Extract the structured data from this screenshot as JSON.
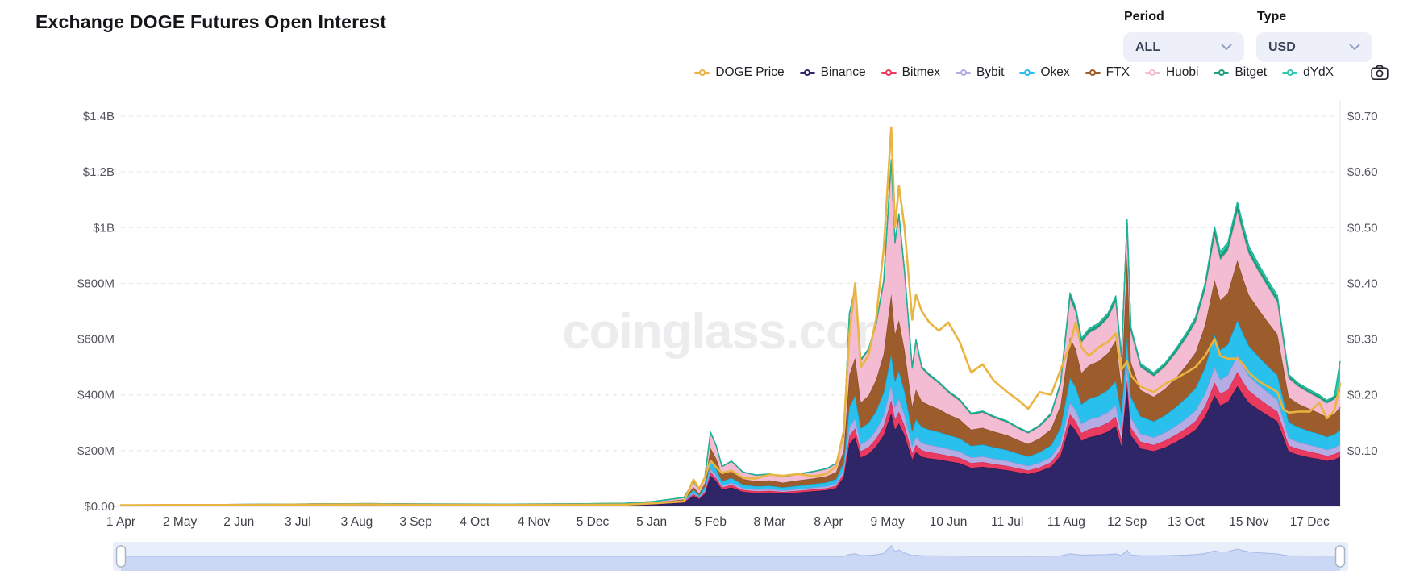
{
  "header": {
    "title": "Exchange DOGE Futures Open Interest",
    "period_label": "Period",
    "period_value": "ALL",
    "type_label": "Type",
    "type_value": "USD"
  },
  "watermark": "coinglass.com",
  "icons": {
    "dropdown": "chevron-down",
    "screenshot": "camera"
  },
  "legend": [
    {
      "label": "DOGE Price",
      "color": "#eab441"
    },
    {
      "label": "Binance",
      "color": "#2e2667"
    },
    {
      "label": "Bitmex",
      "color": "#ea3a60"
    },
    {
      "label": "Bybit",
      "color": "#b6ace4"
    },
    {
      "label": "Okex",
      "color": "#29c0ee"
    },
    {
      "label": "FTX",
      "color": "#9c5c2b"
    },
    {
      "label": "Huobi",
      "color": "#f3bcd3"
    },
    {
      "label": "Bitget",
      "color": "#1fa07d"
    },
    {
      "label": "dYdX",
      "color": "#2dc8ae"
    }
  ],
  "colors": {
    "grid": "#e5e5ea",
    "baseline": "#d8d8de",
    "axis_text": "#55565e",
    "x_tick_text": "#3e3f46",
    "watermark": "#ececef",
    "price_line": "#eab441",
    "nav_track": "#e9eefb",
    "nav_fill": "#cbd8f5",
    "nav_line": "#a3b9ea",
    "nav_handle_fill": "#ffffff",
    "nav_handle_border": "#a9b4c9"
  },
  "chart_data": {
    "type": "area",
    "stacking": "normal",
    "title": "Exchange DOGE Futures Open Interest",
    "grid": "dashed horizontal",
    "legend_position": "top",
    "left_axis": {
      "unit": "USD open interest",
      "tick_labels": [
        "$0.00",
        "$200M",
        "$400M",
        "$600M",
        "$800M",
        "$1B",
        "$1.2B",
        "$1.4B"
      ],
      "values_musd": [
        0,
        200,
        400,
        600,
        800,
        1000,
        1200,
        1400
      ],
      "max_musd": 1400
    },
    "right_axis": {
      "unit": "DOGE price USD",
      "tick_labels": [
        "$0.10",
        "$0.20",
        "$0.30",
        "$0.40",
        "$0.50",
        "$0.60",
        "$0.70"
      ],
      "values": [
        0.1,
        0.2,
        0.3,
        0.4,
        0.5,
        0.6,
        0.7
      ],
      "max": 0.7
    },
    "x_domain": [
      0,
      641
    ],
    "x_ticks": [
      {
        "day": 0,
        "label": "1 Apr"
      },
      {
        "day": 31,
        "label": "2 May"
      },
      {
        "day": 62,
        "label": "2 Jun"
      },
      {
        "day": 93,
        "label": "3 Jul"
      },
      {
        "day": 124,
        "label": "3 Aug"
      },
      {
        "day": 155,
        "label": "3 Sep"
      },
      {
        "day": 186,
        "label": "4 Oct"
      },
      {
        "day": 217,
        "label": "4 Nov"
      },
      {
        "day": 248,
        "label": "5 Dec"
      },
      {
        "day": 279,
        "label": "5 Jan"
      },
      {
        "day": 310,
        "label": "5 Feb"
      },
      {
        "day": 341,
        "label": "8 Mar"
      },
      {
        "day": 372,
        "label": "8 Apr"
      },
      {
        "day": 403,
        "label": "9 May"
      },
      {
        "day": 435,
        "label": "10 Jun"
      },
      {
        "day": 466,
        "label": "11 Jul"
      },
      {
        "day": 497,
        "label": "11 Aug"
      },
      {
        "day": 529,
        "label": "12 Sep"
      },
      {
        "day": 560,
        "label": "13 Oct"
      },
      {
        "day": 593,
        "label": "15 Nov"
      },
      {
        "day": 625,
        "label": "17 Dec"
      }
    ],
    "series_meta": [
      {
        "name": "Binance",
        "fill": "#2e2667",
        "line": "#251e56"
      },
      {
        "name": "Bitmex",
        "fill": "#ea3a60",
        "line": "#d92a50"
      },
      {
        "name": "Bybit",
        "fill": "#b6ace4",
        "line": "#a294da"
      },
      {
        "name": "Okex",
        "fill": "#29c0ee",
        "line": "#12a9da"
      },
      {
        "name": "FTX",
        "fill": "#9c5c2b",
        "line": "#8a4e22"
      },
      {
        "name": "Huobi",
        "fill": "#f3bcd3",
        "line": "#ec9fc2"
      },
      {
        "name": "Bitget",
        "fill": "#1fa07d",
        "line": "#178a6a"
      },
      {
        "name": "dYdX",
        "fill": "#2dc8ae",
        "line": "#1db497"
      }
    ],
    "price_series_name": "DOGE Price",
    "columns": [
      "day",
      "Binance_M",
      "Bitmex_M",
      "Bybit_M",
      "Okex_M",
      "FTX_M",
      "Huobi_M",
      "Bitget_M",
      "dYdX_M",
      "DOGE_price_usd"
    ],
    "rows": [
      [
        0,
        2,
        0.3,
        0.2,
        0.6,
        0.3,
        1.2,
        0,
        0,
        0.0022
      ],
      [
        30,
        2.5,
        0.4,
        0.2,
        0.8,
        0.4,
        1.5,
        0,
        0,
        0.0025
      ],
      [
        65,
        3,
        0.4,
        0.3,
        0.9,
        0.4,
        1.8,
        0,
        0,
        0.0024
      ],
      [
        100,
        4,
        0.5,
        0.3,
        1.1,
        0.5,
        2.2,
        0,
        0,
        0.0032
      ],
      [
        130,
        4.5,
        0.6,
        0.4,
        1.2,
        0.6,
        2.4,
        0,
        0,
        0.0034
      ],
      [
        165,
        4,
        0.5,
        0.3,
        1,
        0.5,
        2,
        0,
        0,
        0.0028
      ],
      [
        200,
        3.8,
        0.5,
        0.3,
        1,
        0.5,
        2,
        0,
        0,
        0.0026
      ],
      [
        235,
        4.2,
        0.5,
        0.4,
        1.1,
        0.6,
        2.2,
        0,
        0,
        0.0028
      ],
      [
        265,
        5,
        0.6,
        0.5,
        1.4,
        0.8,
        2.8,
        0,
        0,
        0.0032
      ],
      [
        280,
        8,
        1,
        0.8,
        2.2,
        1.5,
        4,
        0,
        0,
        0.0055
      ],
      [
        296,
        14,
        2,
        1.5,
        4,
        3,
        7,
        0.2,
        0,
        0.009
      ],
      [
        301,
        38,
        6,
        5,
        11,
        9,
        19,
        0.4,
        0.2,
        0.048
      ],
      [
        304,
        26,
        4,
        3,
        7,
        6,
        13,
        0.4,
        0.2,
        0.031
      ],
      [
        307,
        45,
        7,
        6,
        13,
        12,
        24,
        0.5,
        0.3,
        0.052
      ],
      [
        310,
        110,
        13,
        12,
        26,
        48,
        56,
        1,
        0.5,
        0.082
      ],
      [
        313,
        90,
        11,
        10,
        22,
        38,
        45,
        1,
        0.5,
        0.07
      ],
      [
        316,
        60,
        8,
        7,
        15,
        24,
        28,
        1,
        0.5,
        0.06
      ],
      [
        321,
        68,
        9,
        8,
        17,
        27,
        32,
        1,
        0.5,
        0.064
      ],
      [
        327,
        52,
        7,
        6,
        13,
        20,
        24,
        1,
        0.5,
        0.051
      ],
      [
        334,
        48,
        6,
        6,
        12,
        18,
        21,
        1,
        0.5,
        0.05
      ],
      [
        341,
        50,
        6,
        6,
        12,
        19,
        22,
        1,
        0.5,
        0.057
      ],
      [
        348,
        46,
        6,
        5,
        11,
        17,
        20,
        1,
        0.5,
        0.055
      ],
      [
        356,
        50,
        6,
        6,
        12,
        19,
        22,
        1,
        0.5,
        0.058
      ],
      [
        364,
        54,
        7,
        6,
        13,
        20,
        24,
        1,
        0.5,
        0.054
      ],
      [
        371,
        58,
        7,
        7,
        14,
        22,
        26,
        1,
        0.6,
        0.058
      ],
      [
        376,
        66,
        8,
        8,
        16,
        25,
        30,
        1.5,
        0.7,
        0.072
      ],
      [
        380,
        105,
        13,
        13,
        27,
        42,
        52,
        2,
        1,
        0.135
      ],
      [
        383,
        225,
        28,
        32,
        72,
        115,
        215,
        4,
        2,
        0.31
      ],
      [
        386,
        248,
        32,
        36,
        82,
        135,
        245,
        5,
        2,
        0.4
      ],
      [
        389,
        175,
        23,
        25,
        57,
        92,
        150,
        4,
        2,
        0.25
      ],
      [
        393,
        188,
        24,
        27,
        60,
        98,
        162,
        4,
        2,
        0.27
      ],
      [
        397,
        215,
        27,
        31,
        68,
        112,
        195,
        5,
        2,
        0.335
      ],
      [
        401,
        255,
        33,
        38,
        82,
        138,
        255,
        5,
        3,
        0.46
      ],
      [
        405,
        335,
        46,
        54,
        112,
        215,
        470,
        8,
        4,
        0.68
      ],
      [
        407,
        275,
        37,
        44,
        93,
        168,
        325,
        6,
        3,
        0.5
      ],
      [
        409,
        298,
        41,
        48,
        99,
        182,
        372,
        7,
        3,
        0.575
      ],
      [
        412,
        255,
        34,
        40,
        84,
        148,
        275,
        6,
        3,
        0.5
      ],
      [
        416,
        168,
        22,
        26,
        54,
        88,
        135,
        4,
        2,
        0.335
      ],
      [
        418,
        195,
        26,
        29,
        63,
        106,
        172,
        5,
        2,
        0.38
      ],
      [
        421,
        178,
        23,
        27,
        57,
        92,
        118,
        4,
        2,
        0.35
      ],
      [
        425,
        172,
        22,
        26,
        55,
        88,
        105,
        4,
        2,
        0.33
      ],
      [
        430,
        168,
        21,
        25,
        53,
        82,
        92,
        4,
        2,
        0.315
      ],
      [
        435,
        162,
        20,
        24,
        50,
        74,
        78,
        4,
        2,
        0.33
      ],
      [
        441,
        155,
        19,
        23,
        47,
        68,
        66,
        4,
        2,
        0.295
      ],
      [
        447,
        138,
        17,
        20,
        42,
        58,
        54,
        3,
        2,
        0.24
      ],
      [
        453,
        142,
        17,
        20,
        43,
        60,
        55,
        3,
        2,
        0.255
      ],
      [
        459,
        136,
        16,
        19,
        41,
        56,
        50,
        3,
        2,
        0.225
      ],
      [
        466,
        130,
        15,
        18,
        39,
        53,
        46,
        3,
        2,
        0.205
      ],
      [
        472,
        122,
        14,
        17,
        36,
        48,
        41,
        3,
        2,
        0.19
      ],
      [
        477,
        116,
        13,
        16,
        34,
        45,
        38,
        3,
        2,
        0.175
      ],
      [
        483,
        126,
        14,
        17,
        37,
        50,
        42,
        3,
        2,
        0.205
      ],
      [
        489,
        142,
        16,
        19,
        42,
        58,
        50,
        4,
        3,
        0.2
      ],
      [
        494,
        182,
        21,
        25,
        54,
        80,
        74,
        6,
        4,
        0.245
      ],
      [
        499,
        295,
        35,
        43,
        88,
        145,
        140,
        12,
        8,
        0.29
      ],
      [
        502,
        272,
        33,
        40,
        83,
        136,
        132,
        11,
        7,
        0.33
      ],
      [
        505,
        235,
        28,
        33,
        70,
        112,
        110,
        9,
        6,
        0.285
      ],
      [
        509,
        248,
        29,
        35,
        74,
        120,
        116,
        10,
        6,
        0.27
      ],
      [
        514,
        255,
        30,
        36,
        76,
        124,
        120,
        10,
        6,
        0.285
      ],
      [
        519,
        268,
        32,
        38,
        80,
        132,
        126,
        11,
        7,
        0.295
      ],
      [
        523,
        288,
        34,
        41,
        86,
        146,
        140,
        12,
        8,
        0.31
      ],
      [
        526,
        215,
        25,
        30,
        64,
        100,
        95,
        8,
        5,
        0.245
      ],
      [
        529,
        430,
        26,
        45,
        108,
        288,
        118,
        10,
        6,
        0.26
      ],
      [
        531,
        255,
        28,
        36,
        75,
        122,
        112,
        9,
        6,
        0.235
      ],
      [
        536,
        208,
        24,
        29,
        62,
        95,
        82,
        8,
        5,
        0.215
      ],
      [
        543,
        198,
        22,
        27,
        58,
        88,
        74,
        7,
        5,
        0.205
      ],
      [
        549,
        212,
        24,
        29,
        62,
        95,
        80,
        8,
        5,
        0.22
      ],
      [
        555,
        232,
        26,
        32,
        68,
        106,
        90,
        9,
        6,
        0.23
      ],
      [
        560,
        252,
        28,
        35,
        74,
        116,
        98,
        10,
        7,
        0.24
      ],
      [
        565,
        275,
        31,
        38,
        80,
        128,
        108,
        11,
        8,
        0.25
      ],
      [
        570,
        322,
        37,
        45,
        94,
        152,
        128,
        13,
        9,
        0.27
      ],
      [
        575,
        398,
        46,
        56,
        116,
        196,
        160,
        18,
        13,
        0.3
      ],
      [
        578,
        362,
        42,
        51,
        106,
        178,
        146,
        16,
        12,
        0.27
      ],
      [
        582,
        375,
        43,
        53,
        110,
        185,
        152,
        17,
        12,
        0.265
      ],
      [
        587,
        432,
        50,
        61,
        125,
        215,
        175,
        20,
        14,
        0.265
      ],
      [
        590,
        400,
        46,
        57,
        116,
        198,
        160,
        18,
        13,
        0.255
      ],
      [
        593,
        372,
        43,
        53,
        108,
        182,
        148,
        16,
        12,
        0.24
      ],
      [
        598,
        348,
        40,
        49,
        101,
        170,
        136,
        15,
        11,
        0.225
      ],
      [
        603,
        326,
        37,
        46,
        94,
        158,
        126,
        14,
        10,
        0.215
      ],
      [
        608,
        305,
        35,
        43,
        88,
        146,
        116,
        13,
        10,
        0.205
      ],
      [
        611,
        252,
        29,
        35,
        72,
        118,
        92,
        10,
        8,
        0.175
      ],
      [
        614,
        196,
        22,
        27,
        56,
        90,
        68,
        8,
        6,
        0.168
      ],
      [
        619,
        185,
        21,
        25,
        53,
        84,
        62,
        7,
        5,
        0.17
      ],
      [
        625,
        176,
        20,
        24,
        50,
        79,
        57,
        7,
        5,
        0.17
      ],
      [
        630,
        170,
        19,
        23,
        48,
        75,
        53,
        7,
        5,
        0.186
      ],
      [
        634,
        163,
        18,
        22,
        46,
        71,
        50,
        6,
        4,
        0.158
      ],
      [
        638,
        168,
        19,
        23,
        48,
        74,
        52,
        7,
        5,
        0.172
      ],
      [
        641,
        178,
        20,
        25,
        52,
        82,
        58,
        8,
        98,
        0.22
      ]
    ]
  }
}
